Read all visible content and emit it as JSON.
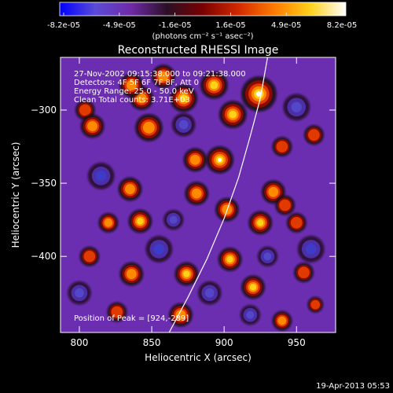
{
  "colorbar": {
    "tick_labels": [
      "-8.2e-05",
      "-4.9e-05",
      "-1.6e-05",
      "1.6e-05",
      "4.9e-05",
      "8.2e-05"
    ],
    "unit_label": "(photons cm⁻² s⁻¹ asec⁻²)",
    "stops": [
      "#0000ff",
      "#5b4bd6",
      "#6f2aa6",
      "#2a1026",
      "#7a0000",
      "#d22a00",
      "#ff7a00",
      "#ffd11a",
      "#ffffff"
    ]
  },
  "chart_data": {
    "type": "heatmap",
    "title": "Reconstructed RHESSI Image",
    "xlabel": "Heliocentric X (arcsec)",
    "ylabel": "Heliocentric Y (arcsec)",
    "xlim": [
      787,
      977
    ],
    "ylim": [
      -452,
      -264
    ],
    "x_ticks": [
      800,
      850,
      900,
      950
    ],
    "x_tick_labels": [
      "800",
      "850",
      "900",
      "950"
    ],
    "y_ticks": [
      -300,
      -350,
      -400
    ],
    "y_tick_labels": [
      "−300",
      "−350",
      "−400"
    ],
    "annotations": [
      "27-Nov-2002 09:15:38.000 to 09:21:38.000",
      "Detectors: 4F 5F 6F 7F 8F, Att 0",
      "Energy Range: 25.0 - 50.0 keV",
      "Clean     Total counts: 3.71E+03"
    ],
    "peak_label": "Position of Peak = [924,-289]",
    "peak": [
      924,
      -289
    ],
    "limb_points": [
      [
        862,
        -452
      ],
      [
        875,
        -428
      ],
      [
        888,
        -402
      ],
      [
        900,
        -374
      ],
      [
        910,
        -346
      ],
      [
        918,
        -318
      ],
      [
        925,
        -292
      ],
      [
        930,
        -264
      ]
    ],
    "sources": [
      [
        924,
        -289,
        9,
        1.0
      ],
      [
        906,
        -303,
        7,
        0.75
      ],
      [
        893,
        -283,
        7,
        0.8
      ],
      [
        872,
        -292,
        7,
        0.85
      ],
      [
        858,
        -277,
        6,
        0.7
      ],
      [
        843,
        -292,
        6,
        0.6
      ],
      [
        836,
        -283,
        6,
        0.7
      ],
      [
        804,
        -300,
        5,
        0.55
      ],
      [
        809,
        -311,
        6,
        0.6
      ],
      [
        848,
        -312,
        7,
        0.7
      ],
      [
        897,
        -334,
        7,
        0.95
      ],
      [
        880,
        -334,
        6,
        0.6
      ],
      [
        835,
        -354,
        6,
        0.65
      ],
      [
        842,
        -376,
        6,
        0.85
      ],
      [
        820,
        -377,
        5,
        0.6
      ],
      [
        881,
        -357,
        6,
        0.7
      ],
      [
        902,
        -368,
        6,
        0.7
      ],
      [
        934,
        -356,
        6,
        0.6
      ],
      [
        942,
        -365,
        5,
        0.55
      ],
      [
        925,
        -377,
        6,
        0.8
      ],
      [
        950,
        -377,
        5,
        0.5
      ],
      [
        962,
        -317,
        5,
        0.5
      ],
      [
        940,
        -325,
        5,
        0.45
      ],
      [
        807,
        -400,
        5,
        0.55
      ],
      [
        836,
        -412,
        6,
        0.65
      ],
      [
        874,
        -412,
        6,
        0.8
      ],
      [
        904,
        -402,
        6,
        0.85
      ],
      [
        920,
        -421,
        6,
        0.8
      ],
      [
        955,
        -411,
        5,
        0.5
      ],
      [
        826,
        -438,
        5,
        0.55
      ],
      [
        870,
        -440,
        6,
        0.65
      ],
      [
        940,
        -444,
        5,
        0.6
      ],
      [
        963,
        -433,
        4,
        0.45
      ],
      [
        815,
        -345,
        8,
        -0.7
      ],
      [
        872,
        -310,
        7,
        -0.55
      ],
      [
        855,
        -395,
        8,
        -0.7
      ],
      [
        950,
        -298,
        8,
        -0.6
      ],
      [
        960,
        -395,
        8,
        -0.65
      ],
      [
        890,
        -425,
        7,
        -0.5
      ],
      [
        930,
        -400,
        6,
        -0.45
      ],
      [
        800,
        -425,
        7,
        -0.6
      ],
      [
        865,
        -375,
        6,
        -0.45
      ],
      [
        918,
        -440,
        6,
        -0.4
      ]
    ]
  },
  "footer": {
    "timestamp": "19-Apr-2013 05:53"
  }
}
